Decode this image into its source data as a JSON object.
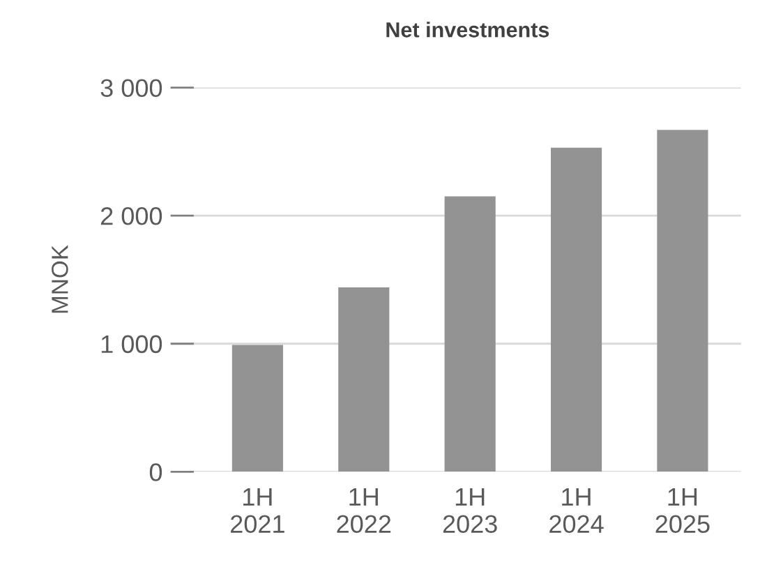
{
  "chart_data": {
    "type": "bar",
    "title": "Net investments",
    "ylabel": "MNOK",
    "categories": [
      "1H\n2021",
      "1H\n2022",
      "1H\n2023",
      "1H\n2024",
      "1H\n2025"
    ],
    "values": [
      990,
      1440,
      2150,
      2530,
      2670
    ],
    "color": "#939393",
    "ylim": [
      0,
      3000
    ],
    "yticks": [
      {
        "value": 0,
        "label": "0"
      },
      {
        "value": 1000,
        "label": "1 000"
      },
      {
        "value": 2000,
        "label": "2 000"
      },
      {
        "value": 3000,
        "label": "3 000"
      }
    ],
    "grid": "y",
    "legend": false
  }
}
